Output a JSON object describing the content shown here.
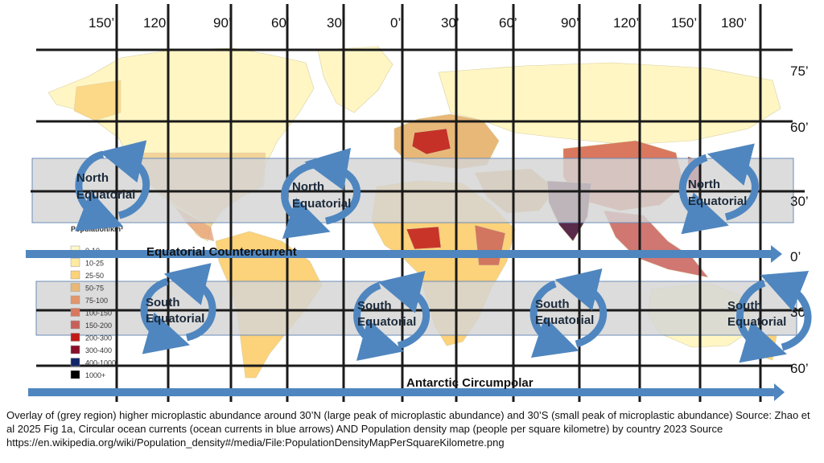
{
  "longitude_labels": [
    "150’",
    "120’",
    "90’",
    "60’",
    "30’",
    "0’",
    "30’",
    "60’",
    "90’",
    "120’",
    "150’",
    "180’"
  ],
  "latitude_labels": [
    "75’",
    "60’",
    "30’",
    "0’",
    "30’",
    "60’"
  ],
  "gyre_labels": {
    "north": [
      "North",
      "Equatorial"
    ],
    "south": [
      "South",
      "Equatorial"
    ]
  },
  "band_currents": {
    "equatorial": "Equatorial Countercurrent",
    "antarctic": "Antarctic Circumpolar"
  },
  "legend": {
    "title": "Population/km²",
    "items": [
      {
        "label": "0-10",
        "color": "#fff8c8"
      },
      {
        "label": "10-25",
        "color": "#ffeaa0"
      },
      {
        "label": "25-50",
        "color": "#fcd27a"
      },
      {
        "label": "50-75",
        "color": "#e8b878"
      },
      {
        "label": "75-100",
        "color": "#e3956b"
      },
      {
        "label": "100-150",
        "color": "#d9785e"
      },
      {
        "label": "150-200",
        "color": "#c8605a"
      },
      {
        "label": "200-300",
        "color": "#c01a1a"
      },
      {
        "label": "300-400",
        "color": "#8a0e2a"
      },
      {
        "label": "400-1000",
        "color": "#12266a"
      },
      {
        "label": "1000+",
        "color": "#000000"
      }
    ]
  },
  "caption": "Overlay of (grey region) higher microplastic abundance around 30’N (large peak of microplastic abundance) and 30’S (small peak of microplastic abundance) Source: Zhao et al 2025 Fig 1a, Circular ocean currents (ocean currents in blue arrows) AND Population density map (people per square kilometre) by country 2023 Source https://en.wikipedia.org/wiki/Population_density#/media/File:PopulationDensityMapPerSquareKilometre.png",
  "colors": {
    "arrow": "#4f86bf",
    "grey_band": "#d4d4d4",
    "grid": "#1a1a1a",
    "land_light": "#fff6c4"
  }
}
